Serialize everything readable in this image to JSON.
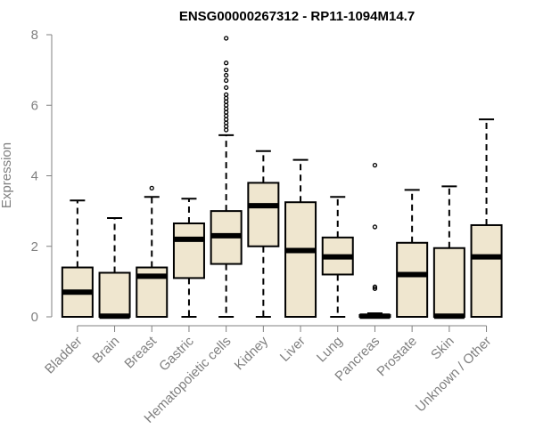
{
  "chart_data": {
    "type": "boxplot",
    "title": "ENSG00000267312 - RP11-1094M14.7",
    "ylabel": "Expression",
    "xlabel": "",
    "ylim": [
      0,
      8
    ],
    "yticks": [
      0,
      2,
      4,
      6,
      8
    ],
    "box_fill": "#efe6cf",
    "categories": [
      "Bladder",
      "Brain",
      "Breast",
      "Gastric",
      "Hematopoietic cells",
      "Kidney",
      "Liver",
      "Lung",
      "Pancreas",
      "Prostate",
      "Skin",
      "Unknown / Other"
    ],
    "boxes": [
      {
        "category": "Bladder",
        "whisker_low": 0,
        "q1": 0,
        "median": 0.7,
        "q3": 1.4,
        "whisker_high": 3.3,
        "outliers": []
      },
      {
        "category": "Brain",
        "whisker_low": 0,
        "q1": 0,
        "median": 0.02,
        "q3": 1.25,
        "whisker_high": 2.8,
        "outliers": []
      },
      {
        "category": "Breast",
        "whisker_low": 0,
        "q1": 0,
        "median": 1.15,
        "q3": 1.4,
        "whisker_high": 3.4,
        "outliers": [
          3.65
        ]
      },
      {
        "category": "Gastric",
        "whisker_low": 0,
        "q1": 1.1,
        "median": 2.2,
        "q3": 2.65,
        "whisker_high": 3.35,
        "outliers": []
      },
      {
        "category": "Hematopoietic cells",
        "whisker_low": 0,
        "q1": 1.5,
        "median": 2.3,
        "q3": 3.0,
        "whisker_high": 5.15,
        "outliers": [
          5.3,
          5.4,
          5.5,
          5.6,
          5.7,
          5.8,
          5.9,
          6.0,
          6.1,
          6.2,
          6.3,
          6.5,
          6.7,
          6.85,
          7.0,
          7.2,
          7.9
        ]
      },
      {
        "category": "Kidney",
        "whisker_low": 0,
        "q1": 2.0,
        "median": 3.15,
        "q3": 3.8,
        "whisker_high": 4.7,
        "outliers": []
      },
      {
        "category": "Liver",
        "whisker_low": 0,
        "q1": 0,
        "median": 1.88,
        "q3": 3.25,
        "whisker_high": 4.45,
        "outliers": []
      },
      {
        "category": "Lung",
        "whisker_low": 0,
        "q1": 1.2,
        "median": 1.7,
        "q3": 2.25,
        "whisker_high": 3.4,
        "outliers": []
      },
      {
        "category": "Pancreas",
        "whisker_low": 0,
        "q1": 0,
        "median": 0.02,
        "q3": 0.05,
        "whisker_high": 0.1,
        "outliers": [
          0.8,
          0.85,
          2.55,
          4.3
        ]
      },
      {
        "category": "Prostate",
        "whisker_low": 0,
        "q1": 0,
        "median": 1.2,
        "q3": 2.1,
        "whisker_high": 3.6,
        "outliers": []
      },
      {
        "category": "Skin",
        "whisker_low": 0,
        "q1": 0,
        "median": 0.02,
        "q3": 1.95,
        "whisker_high": 3.7,
        "outliers": []
      },
      {
        "category": "Unknown / Other",
        "whisker_low": 0,
        "q1": 0,
        "median": 1.7,
        "q3": 2.6,
        "whisker_high": 5.6,
        "outliers": []
      }
    ]
  }
}
